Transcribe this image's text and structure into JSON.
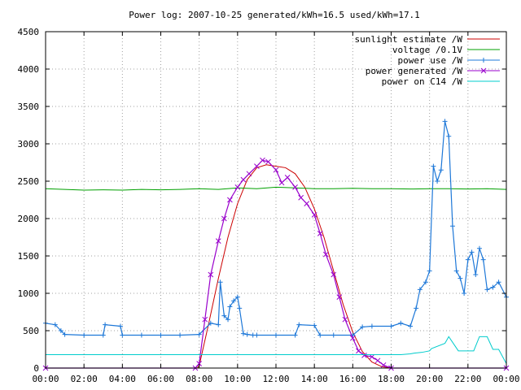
{
  "chart_data": {
    "type": "line",
    "title": "Power log: 2007-10-25 generated/kWh=16.5 used/kWh=17.1",
    "xlabel": "",
    "ylabel": "",
    "xlim": [
      0,
      24
    ],
    "ylim": [
      0,
      4500
    ],
    "x_ticks": [
      0,
      2,
      4,
      6,
      8,
      10,
      12,
      14,
      16,
      18,
      20,
      22,
      24
    ],
    "x_tick_labels": [
      "00:00",
      "02:00",
      "04:00",
      "06:00",
      "08:00",
      "10:00",
      "12:00",
      "14:00",
      "16:00",
      "18:00",
      "20:00",
      "22:00",
      "00:00"
    ],
    "y_ticks": [
      0,
      500,
      1000,
      1500,
      2000,
      2500,
      3000,
      3500,
      4000,
      4500
    ],
    "y_tick_labels": [
      "0",
      "500",
      "1000",
      "1500",
      "2000",
      "2500",
      "3000",
      "3500",
      "4000",
      "4500"
    ],
    "grid": true,
    "legend_position": "top-right",
    "series": [
      {
        "name": "sunlight estimate /W",
        "color": "#cc0000",
        "style": "line",
        "x": [
          0,
          7.9,
          8.0,
          8.5,
          9.0,
          9.5,
          10.0,
          10.5,
          11.0,
          11.5,
          12.0,
          12.5,
          13.0,
          13.5,
          14.0,
          14.5,
          15.0,
          15.5,
          16.0,
          16.5,
          17.0,
          17.5,
          18.0,
          24
        ],
        "y": [
          0,
          0,
          30,
          600,
          1200,
          1750,
          2200,
          2520,
          2680,
          2720,
          2700,
          2680,
          2600,
          2420,
          2130,
          1750,
          1300,
          850,
          480,
          220,
          80,
          20,
          0,
          0
        ]
      },
      {
        "name": "voltage /0.1V",
        "color": "#00a000",
        "style": "line",
        "x": [
          0,
          1,
          2,
          3,
          4,
          5,
          6,
          7,
          8,
          9,
          10,
          11,
          12,
          13,
          14,
          15,
          16,
          17,
          18,
          19,
          20,
          21,
          22,
          23,
          24
        ],
        "y": [
          2400,
          2390,
          2380,
          2385,
          2380,
          2390,
          2385,
          2390,
          2400,
          2390,
          2410,
          2400,
          2420,
          2410,
          2400,
          2400,
          2405,
          2400,
          2400,
          2395,
          2400,
          2400,
          2395,
          2400,
          2390
        ]
      },
      {
        "name": "power use /W",
        "color": "#1e78d8",
        "style": "line-plus",
        "x": [
          0,
          0.5,
          0.8,
          1.0,
          2.0,
          3.0,
          3.1,
          3.9,
          4.0,
          5.0,
          6.0,
          7.0,
          8.0,
          8.6,
          9.0,
          9.1,
          9.3,
          9.5,
          9.6,
          9.8,
          10.0,
          10.1,
          10.3,
          10.5,
          10.8,
          11.0,
          12.0,
          13.0,
          13.2,
          14.0,
          14.3,
          15.0,
          16.0,
          16.5,
          17.0,
          18.0,
          18.5,
          19.0,
          19.3,
          19.5,
          19.8,
          20.0,
          20.2,
          20.4,
          20.6,
          20.8,
          21.0,
          21.2,
          21.4,
          21.6,
          21.8,
          22.0,
          22.2,
          22.4,
          22.6,
          22.8,
          23.0,
          23.3,
          23.6,
          24
        ],
        "y": [
          600,
          580,
          500,
          450,
          440,
          440,
          580,
          560,
          440,
          440,
          440,
          440,
          450,
          600,
          580,
          1150,
          700,
          650,
          820,
          900,
          950,
          800,
          460,
          450,
          440,
          440,
          440,
          440,
          580,
          570,
          440,
          440,
          440,
          550,
          560,
          560,
          600,
          560,
          800,
          1050,
          1150,
          1300,
          2700,
          2500,
          2650,
          3300,
          3100,
          1900,
          1300,
          1200,
          1000,
          1450,
          1550,
          1250,
          1600,
          1450,
          1050,
          1080,
          1150,
          950
        ]
      },
      {
        "name": "power generated /W",
        "color": "#9900cc",
        "style": "line-x",
        "x": [
          0,
          7.8,
          8.0,
          8.3,
          8.6,
          9.0,
          9.3,
          9.6,
          10.0,
          10.3,
          10.6,
          11.0,
          11.3,
          11.6,
          12.0,
          12.3,
          12.6,
          13.0,
          13.3,
          13.6,
          14.0,
          14.3,
          14.6,
          15.0,
          15.3,
          15.6,
          16.0,
          16.3,
          16.6,
          17.0,
          17.3,
          17.6,
          18.0,
          24
        ],
        "y": [
          0,
          0,
          60,
          650,
          1250,
          1700,
          2000,
          2250,
          2420,
          2520,
          2600,
          2700,
          2780,
          2760,
          2650,
          2480,
          2550,
          2420,
          2280,
          2200,
          2050,
          1800,
          1520,
          1250,
          950,
          650,
          400,
          230,
          170,
          150,
          100,
          40,
          0,
          0
        ]
      },
      {
        "name": "power on C14 /W",
        "color": "#00cccc",
        "style": "line",
        "x": [
          0,
          18.5,
          19.0,
          19.2,
          19.6,
          20.0,
          20.1,
          20.8,
          21.0,
          21.5,
          21.7,
          22.3,
          22.6,
          23.0,
          23.3,
          23.6,
          24
        ],
        "y": [
          180,
          180,
          190,
          200,
          210,
          230,
          260,
          330,
          420,
          230,
          230,
          230,
          420,
          420,
          250,
          250,
          60
        ]
      }
    ]
  }
}
